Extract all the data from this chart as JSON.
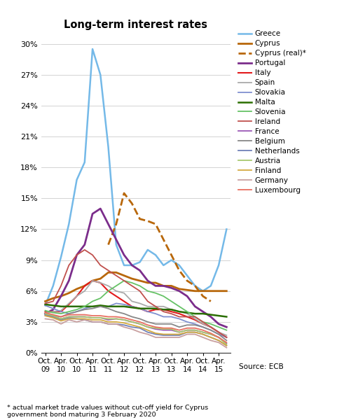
{
  "title": "Long-term interest rates",
  "footnote": "* actual market trade values without cut-off yield for Cyprus\ngovernment bond maturing 3 February 2020",
  "source": "Source: ECB",
  "yticks": [
    0,
    3,
    6,
    9,
    12,
    15,
    18,
    21,
    24,
    27,
    30
  ],
  "ylim": [
    0,
    31
  ],
  "xlabels_top": [
    "Oct.",
    "Apr.",
    "Oct.",
    "Apr.",
    "Oct.",
    "Apr.",
    "Oct.",
    "Apr.",
    "Oct.",
    "Apr.",
    "Oct.",
    "Apr."
  ],
  "xlabels_bot": [
    "09",
    "10",
    "10",
    "11",
    "11",
    "12",
    "12",
    "13",
    "13",
    "14",
    "14",
    "15"
  ],
  "series": {
    "Greece": {
      "color": "#74b9e8",
      "lw": 1.8,
      "ls": "-",
      "data": [
        4.6,
        6.5,
        9.3,
        12.5,
        16.8,
        18.5,
        29.5,
        27.0,
        20.0,
        10.5,
        8.5,
        8.5,
        8.8,
        10.0,
        9.5,
        8.5,
        9.0,
        8.5,
        7.5,
        6.5,
        6.0,
        6.5,
        8.5,
        12.0
      ]
    },
    "Cyprus": {
      "color": "#b8670a",
      "lw": 2.0,
      "ls": "-",
      "data": [
        5.0,
        5.3,
        5.5,
        5.8,
        6.2,
        6.5,
        7.0,
        7.2,
        7.8,
        7.8,
        7.5,
        7.2,
        7.0,
        6.8,
        6.8,
        6.5,
        6.5,
        6.2,
        6.1,
        6.0,
        6.0,
        6.0,
        6.0,
        6.0
      ]
    },
    "Cyprus_real": {
      "color": "#b8670a",
      "lw": 2.0,
      "ls": "--",
      "data": [
        null,
        null,
        null,
        null,
        null,
        null,
        null,
        null,
        10.5,
        12.5,
        15.5,
        14.5,
        13.0,
        12.8,
        12.5,
        11.0,
        9.5,
        8.0,
        7.0,
        6.5,
        5.5,
        5.0,
        null,
        null
      ]
    },
    "Portugal": {
      "color": "#7b2d8b",
      "lw": 2.0,
      "ls": "-",
      "data": [
        3.8,
        4.2,
        5.5,
        7.0,
        9.5,
        10.5,
        13.5,
        14.0,
        12.5,
        11.0,
        9.5,
        8.5,
        8.0,
        7.0,
        6.5,
        6.5,
        6.3,
        6.0,
        5.5,
        4.5,
        4.0,
        3.5,
        2.8,
        2.5
      ]
    },
    "Italy": {
      "color": "#e31a1c",
      "lw": 1.5,
      "ls": "-",
      "data": [
        4.0,
        4.0,
        4.0,
        4.7,
        5.5,
        6.5,
        7.0,
        6.8,
        6.0,
        5.5,
        5.0,
        4.5,
        4.3,
        4.0,
        4.2,
        4.2,
        4.0,
        3.8,
        3.5,
        3.2,
        2.8,
        2.5,
        2.0,
        1.5
      ]
    },
    "Spain": {
      "color": "#aaaaaa",
      "lw": 1.3,
      "ls": "-",
      "data": [
        3.9,
        4.0,
        4.1,
        4.8,
        5.5,
        6.0,
        7.0,
        6.8,
        6.5,
        6.0,
        5.8,
        5.0,
        4.8,
        4.5,
        4.5,
        4.5,
        4.2,
        4.0,
        3.8,
        3.3,
        2.8,
        2.5,
        2.0,
        1.7
      ]
    },
    "Slovakia": {
      "color": "#8090d0",
      "lw": 1.3,
      "ls": "-",
      "data": [
        4.6,
        4.3,
        4.0,
        3.8,
        4.0,
        4.3,
        4.5,
        4.5,
        4.5,
        4.8,
        4.7,
        4.5,
        4.3,
        4.0,
        3.8,
        3.5,
        3.5,
        3.3,
        3.0,
        2.8,
        2.5,
        2.2,
        1.8,
        1.5
      ]
    },
    "Malta": {
      "color": "#2a6e00",
      "lw": 1.8,
      "ls": "-",
      "data": [
        4.7,
        4.6,
        4.5,
        4.5,
        4.5,
        4.5,
        4.5,
        4.6,
        4.5,
        4.5,
        4.5,
        4.4,
        4.3,
        4.3,
        4.3,
        4.2,
        4.2,
        4.0,
        3.9,
        3.8,
        3.8,
        3.7,
        3.6,
        3.5
      ]
    },
    "Slovenia": {
      "color": "#66c266",
      "lw": 1.3,
      "ls": "-",
      "data": [
        4.1,
        3.9,
        3.8,
        4.0,
        4.2,
        4.5,
        5.0,
        5.3,
        6.0,
        6.5,
        7.0,
        6.8,
        6.5,
        6.0,
        5.8,
        5.5,
        5.0,
        4.5,
        4.0,
        3.5,
        3.0,
        2.8,
        2.5,
        2.2
      ]
    },
    "Ireland": {
      "color": "#c0504d",
      "lw": 1.3,
      "ls": "-",
      "data": [
        4.8,
        5.0,
        6.5,
        8.5,
        9.5,
        10.0,
        9.5,
        8.5,
        8.0,
        7.5,
        7.0,
        6.5,
        6.0,
        5.0,
        4.5,
        4.0,
        3.8,
        3.5,
        3.5,
        3.5,
        3.0,
        2.5,
        2.0,
        1.5
      ]
    },
    "France": {
      "color": "#9b59b6",
      "lw": 1.3,
      "ls": "-",
      "data": [
        3.6,
        3.5,
        3.3,
        3.5,
        3.5,
        3.5,
        3.4,
        3.4,
        3.2,
        3.3,
        3.2,
        3.0,
        2.8,
        2.5,
        2.3,
        2.2,
        2.2,
        2.0,
        2.2,
        2.2,
        2.0,
        1.8,
        1.5,
        0.9
      ]
    },
    "Belgium": {
      "color": "#888888",
      "lw": 1.3,
      "ls": "-",
      "data": [
        3.7,
        3.6,
        3.5,
        3.8,
        4.0,
        4.2,
        4.3,
        4.5,
        4.3,
        4.0,
        3.8,
        3.5,
        3.3,
        3.0,
        2.8,
        2.8,
        2.8,
        2.5,
        2.7,
        2.7,
        2.5,
        2.2,
        1.8,
        1.2
      ]
    },
    "Netherlands": {
      "color": "#7080b8",
      "lw": 1.3,
      "ls": "-",
      "data": [
        3.7,
        3.5,
        3.2,
        3.4,
        3.3,
        3.2,
        3.0,
        3.0,
        2.8,
        2.8,
        2.7,
        2.5,
        2.4,
        2.0,
        1.8,
        1.7,
        1.7,
        1.7,
        2.0,
        2.0,
        1.8,
        1.5,
        1.2,
        0.7
      ]
    },
    "Austria": {
      "color": "#a8c870",
      "lw": 1.3,
      "ls": "-",
      "data": [
        3.8,
        3.6,
        3.3,
        3.5,
        3.5,
        3.5,
        3.4,
        3.4,
        3.3,
        3.3,
        3.2,
        3.0,
        2.8,
        2.5,
        2.4,
        2.3,
        2.3,
        2.0,
        2.2,
        2.2,
        2.0,
        1.8,
        1.5,
        0.8
      ]
    },
    "Finland": {
      "color": "#d4aa40",
      "lw": 1.3,
      "ls": "-",
      "data": [
        3.6,
        3.4,
        3.1,
        3.3,
        3.3,
        3.3,
        3.2,
        3.2,
        3.0,
        3.0,
        2.9,
        2.7,
        2.5,
        2.2,
        1.9,
        1.8,
        1.8,
        1.8,
        2.0,
        2.0,
        1.8,
        1.5,
        1.2,
        0.7
      ]
    },
    "Germany": {
      "color": "#c9a0a0",
      "lw": 1.3,
      "ls": "-",
      "data": [
        3.3,
        3.2,
        2.8,
        3.2,
        3.0,
        3.2,
        3.0,
        3.0,
        2.8,
        2.8,
        2.5,
        2.3,
        2.0,
        1.8,
        1.5,
        1.5,
        1.5,
        1.5,
        1.8,
        1.8,
        1.5,
        1.2,
        1.0,
        0.5
      ]
    },
    "Luxembourg": {
      "color": "#e87060",
      "lw": 1.3,
      "ls": "-",
      "data": [
        3.9,
        3.7,
        3.5,
        3.7,
        3.7,
        3.7,
        3.6,
        3.6,
        3.5,
        3.5,
        3.4,
        3.2,
        3.0,
        2.7,
        2.5,
        2.4,
        2.4,
        2.2,
        2.4,
        2.4,
        2.2,
        1.9,
        1.5,
        1.0
      ]
    }
  },
  "legend_entries": [
    [
      "Greece",
      "#74b9e8",
      "-",
      1.8
    ],
    [
      "Cyprus",
      "#b8670a",
      "-",
      2.0
    ],
    [
      "Cyprus (real)*",
      "#b8670a",
      "--",
      2.0
    ],
    [
      "Portugal",
      "#7b2d8b",
      "-",
      2.0
    ],
    [
      "Italy",
      "#e31a1c",
      "-",
      1.5
    ],
    [
      "Spain",
      "#aaaaaa",
      "-",
      1.3
    ],
    [
      "Slovakia",
      "#8090d0",
      "-",
      1.3
    ],
    [
      "Malta",
      "#2a6e00",
      "-",
      1.8
    ],
    [
      "Slovenia",
      "#66c266",
      "-",
      1.3
    ],
    [
      "Ireland",
      "#c0504d",
      "-",
      1.3
    ],
    [
      "France",
      "#9b59b6",
      "-",
      1.3
    ],
    [
      "Belgium",
      "#888888",
      "-",
      1.3
    ],
    [
      "Netherlands",
      "#7080b8",
      "-",
      1.3
    ],
    [
      "Austria",
      "#a8c870",
      "-",
      1.3
    ],
    [
      "Finland",
      "#d4aa40",
      "-",
      1.3
    ],
    [
      "Germany",
      "#c9a0a0",
      "-",
      1.3
    ],
    [
      "Luxembourg",
      "#e87060",
      "-",
      1.3
    ]
  ]
}
